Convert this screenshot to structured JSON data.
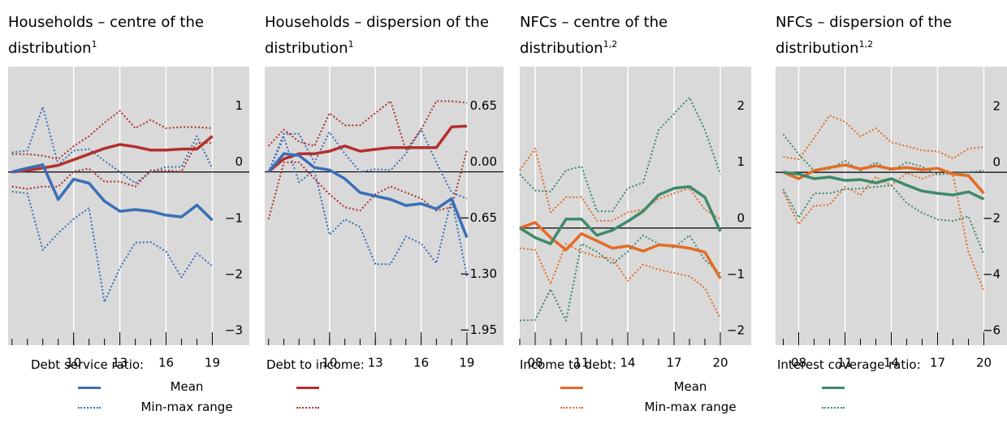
{
  "chart_data": [
    {
      "type": "line",
      "title": "Households – centre of the distribution",
      "title_sup": "1",
      "x": [
        6,
        7,
        8,
        9,
        10,
        11,
        12,
        13,
        14,
        15,
        16,
        17,
        18,
        19
      ],
      "xlim": [
        5.75,
        21.4
      ],
      "xticks": [
        10,
        13,
        16,
        19
      ],
      "ylim": [
        -3.09,
        1.88
      ],
      "yticks": [
        {
          "value": -3,
          "label": "−3"
        },
        {
          "value": -2,
          "label": "−2"
        },
        {
          "value": -1,
          "label": "−1"
        },
        0,
        1
      ],
      "zero_line": true,
      "grid": "x",
      "series": [
        {
          "color": "#3a6fb7",
          "style": "dotted",
          "values": [
            0.35,
            0.38,
            1.16,
            0.13,
            0.38,
            0.41,
            0.2,
            0,
            -0.2,
            0,
            0.09,
            0.09,
            0.64,
            0.06
          ]
        },
        {
          "color": "#3a6fb7",
          "style": "dotted",
          "values": [
            -0.35,
            -0.38,
            -1.39,
            -1.09,
            -0.84,
            -0.64,
            -2.32,
            -1.71,
            -1.26,
            -1.25,
            -1.42,
            -1.88,
            -1.45,
            -1.68
          ]
        },
        {
          "color": "#b2302e",
          "style": "dotted",
          "values": [
            0.32,
            0.32,
            0.29,
            0.23,
            0.46,
            0.64,
            0.88,
            1.09,
            0.78,
            0.93,
            0.78,
            0.8,
            0.8,
            0.78
          ]
        },
        {
          "color": "#b2302e",
          "style": "dotted",
          "values": [
            -0.26,
            -0.3,
            -0.26,
            -0.26,
            0.01,
            0.06,
            -0.17,
            -0.17,
            -0.26,
            0.03,
            0.03,
            0.01,
            0.52,
            0.52
          ]
        },
        {
          "color": "#b2302e",
          "style": "solid",
          "values": [
            0,
            0.03,
            0.07,
            0.12,
            0.22,
            0.32,
            0.42,
            0.49,
            0.45,
            0.39,
            0.39,
            0.41,
            0.41,
            0.64
          ]
        },
        {
          "color": "#3a6fb7",
          "style": "solid",
          "values": [
            0,
            0.07,
            0.13,
            -0.49,
            -0.13,
            -0.2,
            -0.52,
            -0.7,
            -0.67,
            -0.7,
            -0.77,
            -0.8,
            -0.59,
            -0.86
          ]
        }
      ]
    },
    {
      "type": "line",
      "title": "Households – dispersion of the distribution",
      "title_sup": "1",
      "x": [
        6,
        7,
        8,
        9,
        10,
        11,
        12,
        13,
        14,
        15,
        16,
        17,
        18,
        19
      ],
      "xlim": [
        5.75,
        21.4
      ],
      "xticks": [
        10,
        13,
        16,
        19
      ],
      "ylim": [
        -2.01,
        1.22
      ],
      "yticks": [
        {
          "value": -1.95,
          "label": "−1.95"
        },
        {
          "value": -1.3,
          "label": "−1.30"
        },
        {
          "value": -0.65,
          "label": "−0.65"
        },
        {
          "value": 0,
          "label": "0.00"
        },
        0.65
      ],
      "zero_line": true,
      "grid": "x",
      "series": [
        {
          "color": "#3a6fb7",
          "style": "dotted",
          "values": [
            0,
            0.44,
            0.44,
            0.11,
            0.46,
            0.21,
            0,
            0.03,
            0.02,
            0.21,
            0.49,
            0.11,
            -0.24,
            -0.31
          ]
        },
        {
          "color": "#3a6fb7",
          "style": "dotted",
          "values": [
            0,
            0.4,
            -0.12,
            0.02,
            -0.73,
            -0.55,
            -0.64,
            -1.07,
            -1.07,
            -0.75,
            -0.83,
            -1.06,
            -0.31,
            -1.21
          ]
        },
        {
          "color": "#b2302e",
          "style": "dotted",
          "values": [
            0.3,
            0.49,
            0.35,
            0.3,
            0.68,
            0.54,
            0.54,
            0.68,
            0.82,
            0.25,
            0.49,
            0.82,
            0.82,
            0.8
          ]
        },
        {
          "color": "#b2302e",
          "style": "dotted",
          "values": [
            -0.55,
            0.11,
            0.11,
            -0.08,
            -0.26,
            -0.41,
            -0.45,
            -0.26,
            -0.17,
            -0.24,
            -0.31,
            -0.45,
            -0.41,
            0.25
          ]
        },
        {
          "color": "#b2302e",
          "style": "solid",
          "values": [
            0,
            0.15,
            0.21,
            0.21,
            0.24,
            0.3,
            0.24,
            0.26,
            0.28,
            0.28,
            0.28,
            0.28,
            0.52,
            0.53
          ]
        },
        {
          "color": "#3a6fb7",
          "style": "solid",
          "values": [
            0,
            0.21,
            0.19,
            0.05,
            0.02,
            -0.08,
            -0.24,
            -0.28,
            -0.32,
            -0.39,
            -0.37,
            -0.43,
            -0.31,
            -0.76
          ]
        }
      ]
    },
    {
      "type": "line",
      "title": "NFCs – centre of the distribution",
      "title_sup": "1,2",
      "x": [
        7,
        8,
        9,
        10,
        11,
        12,
        13,
        14,
        15,
        16,
        17,
        18,
        19,
        20
      ],
      "xlim": [
        7,
        22
      ],
      "xticks": [
        {
          "value": 8,
          "label": "08"
        },
        11,
        14,
        17,
        20
      ],
      "ylim": [
        -2.09,
        2.88
      ],
      "yticks": [
        {
          "value": -2,
          "label": "−2"
        },
        {
          "value": -1,
          "label": "−1"
        },
        0,
        1,
        2
      ],
      "zero_line": true,
      "grid": "x",
      "series": [
        {
          "color": "#e36c25",
          "style": "dotted",
          "values": [
            1.03,
            1.42,
            0.28,
            0.55,
            0.55,
            0.13,
            0.13,
            0.28,
            0.33,
            0.52,
            0.62,
            0.71,
            0.33,
            0.16
          ]
        },
        {
          "color": "#e36c25",
          "style": "dotted",
          "values": [
            -0.36,
            -0.39,
            -1.0,
            -0.28,
            -0.42,
            -0.51,
            -0.54,
            -0.94,
            -0.65,
            -0.74,
            -0.8,
            -0.86,
            -1.07,
            -1.61
          ]
        },
        {
          "color": "#3d8a6a",
          "style": "dotted",
          "values": [
            0.96,
            0.67,
            0.65,
            1.03,
            1.1,
            0.3,
            0.3,
            0.71,
            0.81,
            1.75,
            2.04,
            2.33,
            1.75,
            0.96
          ]
        },
        {
          "color": "#3d8a6a",
          "style": "dotted",
          "values": [
            -1.65,
            -1.64,
            -1.09,
            -1.65,
            -0.28,
            -0.42,
            -0.64,
            -0.42,
            -0.13,
            -0.28,
            -0.35,
            -0.13,
            -0.57,
            -0.81
          ]
        },
        {
          "color": "#e36c25",
          "style": "solid",
          "values": [
            0,
            0.1,
            -0.17,
            -0.39,
            -0.1,
            -0.23,
            -0.36,
            -0.32,
            -0.41,
            -0.3,
            -0.32,
            -0.36,
            -0.43,
            -0.9
          ]
        },
        {
          "color": "#3d8a6a",
          "style": "solid",
          "values": [
            0,
            -0.17,
            -0.28,
            0.16,
            0.16,
            -0.13,
            -0.04,
            0.12,
            0.3,
            0.59,
            0.71,
            0.74,
            0.55,
            -0.06
          ]
        }
      ]
    },
    {
      "type": "line",
      "title": "NFCs – dispersion of the distribution",
      "title_sup": "1,2",
      "x": [
        7,
        8,
        9,
        10,
        11,
        12,
        13,
        14,
        15,
        16,
        17,
        18,
        19,
        20
      ],
      "xlim": [
        6.5,
        21.5
      ],
      "xticks": [
        {
          "value": 8,
          "label": "08"
        },
        11,
        14,
        17,
        20
      ],
      "ylim": [
        -6.17,
        3.77
      ],
      "yticks": [
        {
          "value": -6,
          "label": "−6"
        },
        {
          "value": -4,
          "label": "−4"
        },
        {
          "value": -2,
          "label": "−2"
        },
        0,
        2
      ],
      "zero_line": true,
      "grid": "x",
      "series": [
        {
          "color": "#e36c25",
          "style": "dotted",
          "values": [
            0.55,
            0.46,
            1.22,
            2.03,
            1.8,
            1.28,
            1.57,
            1.07,
            0.93,
            0.78,
            0.75,
            0.49,
            0.84,
            0.9
          ]
        },
        {
          "color": "#e36c25",
          "style": "dotted",
          "values": [
            -0.7,
            -1.86,
            -1.19,
            -1.16,
            -0.52,
            -0.81,
            -0.17,
            -0.46,
            -0.03,
            -0.23,
            -0.03,
            -0.09,
            -2.84,
            -4.23
          ]
        },
        {
          "color": "#3d8a6a",
          "style": "dotted",
          "values": [
            1.36,
            0.64,
            0.06,
            0.12,
            0.41,
            0.06,
            0.35,
            0.06,
            0.35,
            0.2,
            -0.09,
            -0.03,
            0,
            0.06
          ]
        },
        {
          "color": "#3d8a6a",
          "style": "dotted",
          "values": [
            -0.61,
            -1.62,
            -0.75,
            -0.75,
            -0.61,
            -0.58,
            -0.52,
            -0.46,
            -1.1,
            -1.45,
            -1.68,
            -1.74,
            -1.57,
            -2.93
          ]
        },
        {
          "color": "#e36c25",
          "style": "solid",
          "values": [
            0,
            -0.23,
            0.06,
            0.17,
            0.26,
            0.12,
            0.23,
            0.12,
            0.17,
            0.09,
            0.14,
            -0.06,
            -0.12,
            -0.75
          ]
        },
        {
          "color": "#3d8a6a",
          "style": "solid",
          "values": [
            0,
            -0.06,
            -0.23,
            -0.17,
            -0.29,
            -0.26,
            -0.38,
            -0.23,
            -0.46,
            -0.67,
            -0.75,
            -0.81,
            -0.7,
            -0.96
          ]
        }
      ]
    }
  ],
  "legend": [
    {
      "groups": [
        {
          "title": "Debt service ratio:",
          "color": "#3a6fb7"
        },
        {
          "title": "Debt to income:",
          "color": "#b2302e"
        }
      ],
      "labels": [
        "Mean",
        "Min-max range"
      ]
    },
    {
      "groups": [
        {
          "title": "Income to debt:",
          "color": "#e36c25"
        },
        {
          "title": "Interest coverage ratio:",
          "color": "#3d8a6a"
        }
      ],
      "labels": [
        "Mean",
        "Min-max range"
      ]
    }
  ]
}
